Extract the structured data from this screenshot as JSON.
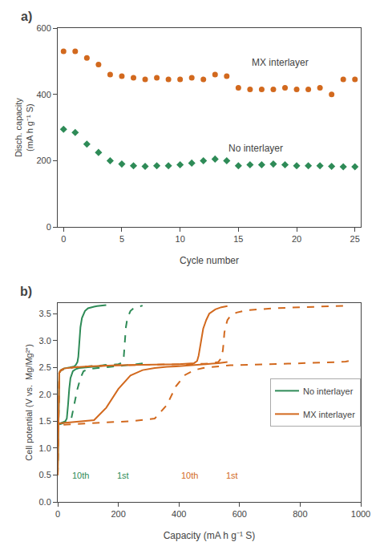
{
  "chart_data": [
    {
      "type": "scatter",
      "title": "a)",
      "xlabel": "Cycle number",
      "ylabel": "Disch. capacity\n(mA h g⁻¹ S)",
      "xlim": [
        -0.5,
        25.5
      ],
      "ylim": [
        0,
        600
      ],
      "xticks": [
        0,
        5,
        10,
        15,
        20,
        25
      ],
      "yticks": [
        0,
        200,
        400,
        600
      ],
      "grid": false,
      "series": [
        {
          "color": "#d2691e",
          "marker": "circle",
          "x": [
            0,
            1,
            2,
            3,
            4,
            5,
            6,
            7,
            8,
            9,
            10,
            11,
            12,
            13,
            14,
            15,
            16,
            17,
            18,
            19,
            20,
            21,
            22,
            23,
            24,
            25
          ],
          "values": [
            530,
            530,
            510,
            490,
            460,
            455,
            450,
            445,
            450,
            445,
            445,
            450,
            445,
            460,
            455,
            420,
            415,
            415,
            415,
            420,
            415,
            415,
            420,
            400,
            445,
            445
          ]
        },
        {
          "color": "#2e8b57",
          "marker": "diamond",
          "x": [
            0,
            1,
            2,
            3,
            4,
            5,
            6,
            7,
            8,
            9,
            10,
            11,
            12,
            13,
            14,
            15,
            16,
            17,
            18,
            19,
            20,
            21,
            22,
            23,
            24,
            25
          ],
          "values": [
            295,
            285,
            250,
            225,
            200,
            190,
            185,
            183,
            185,
            185,
            188,
            193,
            200,
            205,
            200,
            185,
            188,
            188,
            190,
            188,
            185,
            185,
            185,
            183,
            182,
            182
          ]
        }
      ],
      "annotations": [
        {
          "text": "MX interlayer",
          "x": 16,
          "y": 495
        },
        {
          "text": "No interlayer",
          "x": 14,
          "y": 238
        }
      ]
    },
    {
      "type": "line",
      "title": "b)",
      "xlabel": "Capacity (mA h g⁻¹ S)",
      "ylabel": "Cell potential (V vs.  Mg/Mg²⁺)",
      "xlim": [
        0,
        1000
      ],
      "ylim": [
        0.0,
        3.7
      ],
      "xticks": [
        0,
        200,
        400,
        600,
        800,
        1000
      ],
      "yticks": [
        {
          "value": 0,
          "label": "0.0"
        },
        0.5,
        {
          "value": 1,
          "label": "1.0"
        },
        1.5,
        {
          "value": 2,
          "label": "2.0"
        },
        2.5,
        {
          "value": 3,
          "label": "3.0"
        },
        3.5
      ],
      "grid": false,
      "legend": "right",
      "series": [
        {
          "name": "No interlayer",
          "color": "#2e8b57",
          "line_style": "solid",
          "x": [
            0,
            2,
            5,
            10,
            20,
            40,
            55,
            60,
            65,
            68,
            70,
            72,
            75,
            80,
            90,
            100,
            110,
            120,
            130,
            145,
            155,
            160
          ],
          "values": [
            0.5,
            1.5,
            2.4,
            2.45,
            2.48,
            2.5,
            2.52,
            2.55,
            2.6,
            2.7,
            2.85,
            3.05,
            3.25,
            3.42,
            3.55,
            3.6,
            3.62,
            3.63,
            3.64,
            3.65,
            3.66,
            3.66
          ]
        },
        {
          "name": "No interlayer",
          "color": "#2e8b57",
          "line_style": "solid",
          "x": [
            160,
            155,
            145,
            130,
            110,
            90,
            70,
            60,
            50,
            42,
            38,
            34,
            30,
            25,
            20,
            15,
            10,
            5,
            2,
            0
          ],
          "values": [
            2.55,
            2.54,
            2.53,
            2.52,
            2.51,
            2.5,
            2.49,
            2.47,
            2.43,
            2.3,
            2.1,
            1.8,
            1.55,
            1.5,
            1.49,
            1.48,
            1.47,
            1.46,
            1.45,
            1.44
          ]
        },
        {
          "name": "No interlayer",
          "color": "#2e8b57",
          "line_style": "dashed",
          "x": [
            0,
            2,
            5,
            10,
            20,
            50,
            100,
            150,
            200,
            210,
            215,
            218,
            220,
            222,
            225,
            230,
            240,
            250,
            260,
            270,
            275,
            280
          ],
          "values": [
            0.5,
            1.5,
            2.4,
            2.44,
            2.47,
            2.5,
            2.52,
            2.54,
            2.56,
            2.58,
            2.62,
            2.7,
            2.85,
            3.05,
            3.25,
            3.42,
            3.55,
            3.6,
            3.62,
            3.63,
            3.64,
            3.65
          ]
        },
        {
          "name": "No interlayer",
          "color": "#2e8b57",
          "line_style": "dashed",
          "x": [
            280,
            275,
            260,
            240,
            220,
            200,
            180,
            160,
            140,
            120,
            100,
            85,
            75,
            65,
            55,
            45,
            38,
            32,
            26,
            20,
            14,
            8,
            3,
            0
          ],
          "values": [
            2.58,
            2.57,
            2.56,
            2.55,
            2.54,
            2.53,
            2.52,
            2.51,
            2.5,
            2.49,
            2.47,
            2.43,
            2.3,
            2.1,
            1.8,
            1.55,
            1.5,
            1.49,
            1.48,
            1.47,
            1.46,
            1.45,
            1.44,
            1.43
          ]
        },
        {
          "name": "MX interlayer",
          "color": "#d2691e",
          "line_style": "solid",
          "x": [
            0,
            2,
            5,
            10,
            20,
            50,
            100,
            200,
            300,
            400,
            450,
            460,
            465,
            470,
            475,
            480,
            490,
            500,
            520,
            540,
            560
          ],
          "values": [
            0.5,
            1.5,
            2.4,
            2.45,
            2.48,
            2.5,
            2.52,
            2.54,
            2.555,
            2.56,
            2.58,
            2.62,
            2.72,
            2.88,
            3.05,
            3.22,
            3.38,
            3.5,
            3.58,
            3.62,
            3.64
          ]
        },
        {
          "name": "MX interlayer",
          "color": "#d2691e",
          "line_style": "solid",
          "x": [
            560,
            550,
            530,
            510,
            490,
            470,
            450,
            420,
            390,
            360,
            320,
            280,
            240,
            200,
            160,
            120,
            80,
            50,
            30,
            15,
            5,
            0
          ],
          "values": [
            2.6,
            2.59,
            2.58,
            2.57,
            2.56,
            2.55,
            2.54,
            2.53,
            2.52,
            2.51,
            2.49,
            2.45,
            2.35,
            2.1,
            1.75,
            1.52,
            1.5,
            1.49,
            1.48,
            1.47,
            1.46,
            1.45
          ]
        },
        {
          "name": "MX interlayer",
          "color": "#d2691e",
          "line_style": "dashed",
          "x": [
            0,
            2,
            5,
            10,
            20,
            50,
            100,
            200,
            300,
            400,
            500,
            530,
            540,
            545,
            548,
            550,
            555,
            560,
            570,
            590,
            620,
            660,
            710,
            760,
            810,
            860,
            910,
            960
          ],
          "values": [
            0.5,
            1.5,
            2.4,
            2.44,
            2.47,
            2.5,
            2.52,
            2.54,
            2.555,
            2.56,
            2.57,
            2.6,
            2.68,
            2.82,
            3.0,
            3.15,
            3.28,
            3.38,
            3.46,
            3.52,
            3.56,
            3.58,
            3.6,
            3.61,
            3.62,
            3.63,
            3.64,
            3.65
          ]
        },
        {
          "name": "MX interlayer",
          "color": "#d2691e",
          "line_style": "dashed",
          "x": [
            960,
            950,
            920,
            880,
            840,
            800,
            760,
            720,
            680,
            640,
            600,
            570,
            550,
            530,
            510,
            480,
            450,
            420,
            390,
            360,
            320,
            280,
            240,
            200,
            160,
            120,
            80,
            50,
            30,
            15,
            5,
            0
          ],
          "values": [
            2.62,
            2.61,
            2.6,
            2.59,
            2.58,
            2.575,
            2.57,
            2.565,
            2.56,
            2.555,
            2.55,
            2.54,
            2.53,
            2.52,
            2.51,
            2.49,
            2.45,
            2.36,
            2.15,
            1.8,
            1.55,
            1.52,
            1.5,
            1.49,
            1.48,
            1.47,
            1.46,
            1.45,
            1.44,
            1.43,
            1.42,
            1.42
          ]
        }
      ],
      "annotations": [
        {
          "text": "10th",
          "x": 75,
          "y": 0.38,
          "color": "#2e8b57"
        },
        {
          "text": "1st",
          "x": 215,
          "y": 0.38,
          "color": "#2e8b57"
        },
        {
          "text": "10th",
          "x": 435,
          "y": 0.38,
          "color": "#d2691e"
        },
        {
          "text": "1st",
          "x": 575,
          "y": 0.38,
          "color": "#d2691e"
        }
      ]
    }
  ]
}
